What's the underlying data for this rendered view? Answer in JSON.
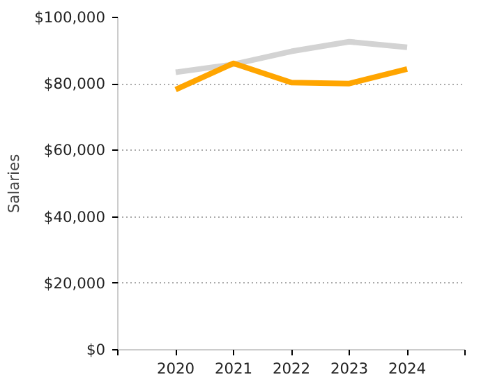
{
  "chart_data": {
    "type": "line",
    "ylabel": "Salaries",
    "x": [
      2020,
      2021,
      2022,
      2023,
      2024
    ],
    "series": [
      {
        "color": "#d3d3d3",
        "values": [
          83500,
          85900,
          89800,
          92700,
          91000
        ]
      },
      {
        "color": "#ffa500",
        "values": [
          78300,
          86200,
          80400,
          80100,
          84500
        ]
      }
    ],
    "xlim": [
      2019,
      2025
    ],
    "xticks": [
      {
        "value": 2019,
        "label": null
      },
      2020,
      2021,
      2022,
      2023,
      2024,
      {
        "value": 2025,
        "label": null
      }
    ],
    "ylim": [
      0,
      100000
    ],
    "yticks": [
      {
        "value": 0,
        "label": "$0"
      },
      {
        "value": 20000,
        "label": "$20,000"
      },
      {
        "value": 40000,
        "label": "$40,000"
      },
      {
        "value": 60000,
        "label": "$60,000"
      },
      {
        "value": 80000,
        "label": "$80,000"
      },
      {
        "value": 100000,
        "label": "$100,000"
      }
    ],
    "grid": "y",
    "marker": "none",
    "line_style": "solid"
  }
}
